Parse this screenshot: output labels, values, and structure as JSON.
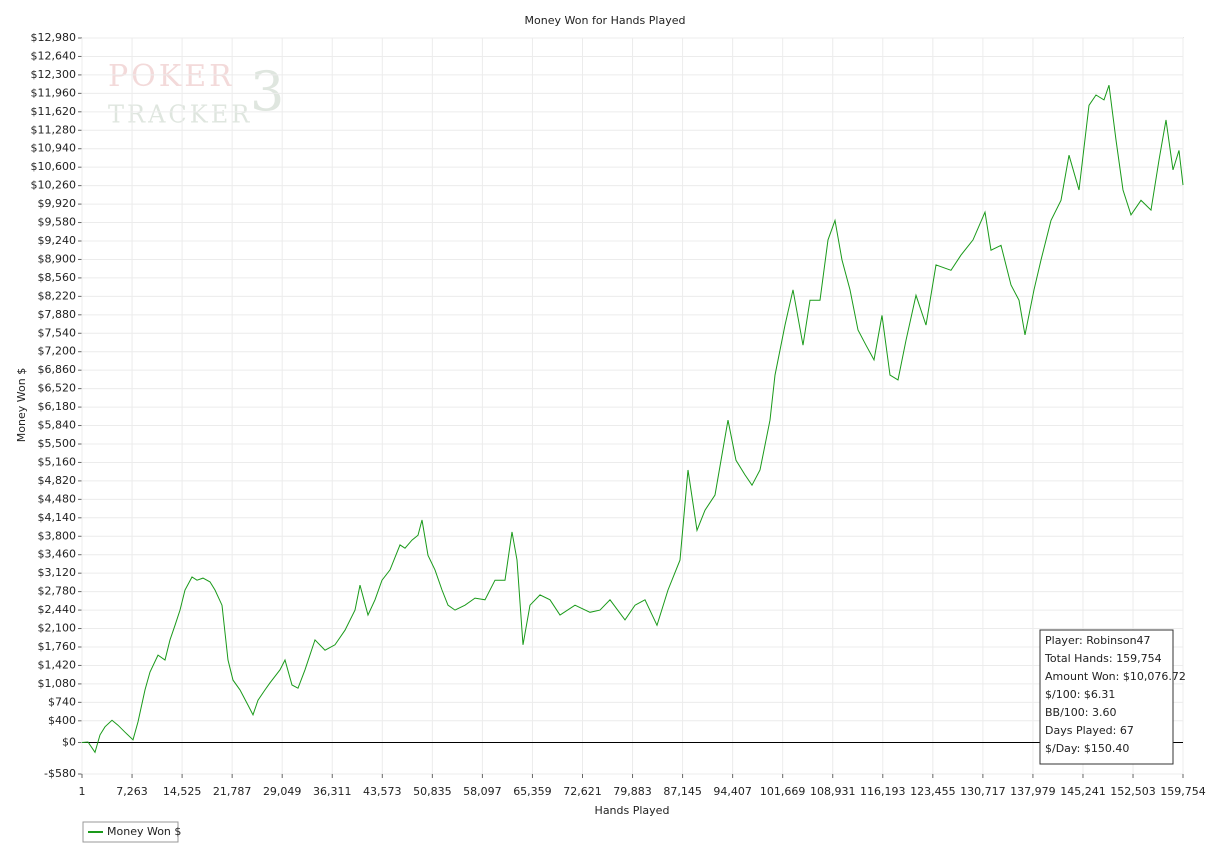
{
  "chart_data": {
    "type": "line",
    "title": "Money Won for Hands Played",
    "x_label": "Hands Played",
    "y_label": "Money Won $",
    "watermark": [
      "POKER",
      "TRACKER",
      "3"
    ],
    "info_box": [
      "Player: Robinson47",
      "Total Hands: 159,754",
      "Amount Won: $10,076.72",
      "$/100: $6.31",
      "BB/100: 3.60",
      "Days Played: 67",
      "$/Day: $150.40"
    ],
    "reference_line": 0,
    "grid": true,
    "legend": "bottom-left",
    "xlim": [
      1,
      159754
    ],
    "ylim": [
      -580,
      12980
    ],
    "xticks": [
      1,
      {
        "value": 7263,
        "label": "7,263"
      },
      {
        "value": 14525,
        "label": "14,525"
      },
      {
        "value": 21787,
        "label": "21,787"
      },
      {
        "value": 29049,
        "label": "29,049"
      },
      {
        "value": 36311,
        "label": "36,311"
      },
      {
        "value": 43573,
        "label": "43,573"
      },
      {
        "value": 50835,
        "label": "50,835"
      },
      {
        "value": 58097,
        "label": "58,097"
      },
      {
        "value": 65359,
        "label": "65,359"
      },
      {
        "value": 72621,
        "label": "72,621"
      },
      {
        "value": 79883,
        "label": "79,883"
      },
      {
        "value": 87145,
        "label": "87,145"
      },
      {
        "value": 94407,
        "label": "94,407"
      },
      {
        "value": 101669,
        "label": "101,669"
      },
      {
        "value": 108931,
        "label": "108,931"
      },
      {
        "value": 116193,
        "label": "116,193"
      },
      {
        "value": 123455,
        "label": "123,455"
      },
      {
        "value": 130717,
        "label": "130,717"
      },
      {
        "value": 137979,
        "label": "137,979"
      },
      {
        "value": 145241,
        "label": "145,241"
      },
      {
        "value": 152503,
        "label": "152,503"
      },
      {
        "value": 159754,
        "label": "159,754"
      }
    ],
    "yticks": [
      {
        "value": -580,
        "label": "-$580"
      },
      {
        "value": 0,
        "label": "$0"
      },
      {
        "value": 400,
        "label": "$400"
      },
      {
        "value": 740,
        "label": "$740"
      },
      {
        "value": 1080,
        "label": "$1,080"
      },
      {
        "value": 1420,
        "label": "$1,420"
      },
      {
        "value": 1760,
        "label": "$1,760"
      },
      {
        "value": 2100,
        "label": "$2,100"
      },
      {
        "value": 2440,
        "label": "$2,440"
      },
      {
        "value": 2780,
        "label": "$2,780"
      },
      {
        "value": 3120,
        "label": "$3,120"
      },
      {
        "value": 3460,
        "label": "$3,460"
      },
      {
        "value": 3800,
        "label": "$3,800"
      },
      {
        "value": 4140,
        "label": "$4,140"
      },
      {
        "value": 4480,
        "label": "$4,480"
      },
      {
        "value": 4820,
        "label": "$4,820"
      },
      {
        "value": 5160,
        "label": "$5,160"
      },
      {
        "value": 5500,
        "label": "$5,500"
      },
      {
        "value": 5840,
        "label": "$5,840"
      },
      {
        "value": 6180,
        "label": "$6,180"
      },
      {
        "value": 6520,
        "label": "$6,520"
      },
      {
        "value": 6860,
        "label": "$6,860"
      },
      {
        "value": 7200,
        "label": "$7,200"
      },
      {
        "value": 7540,
        "label": "$7,540"
      },
      {
        "value": 7880,
        "label": "$7,880"
      },
      {
        "value": 8220,
        "label": "$8,220"
      },
      {
        "value": 8560,
        "label": "$8,560"
      },
      {
        "value": 8900,
        "label": "$8,900"
      },
      {
        "value": 9240,
        "label": "$9,240"
      },
      {
        "value": 9580,
        "label": "$9,580"
      },
      {
        "value": 9920,
        "label": "$9,920"
      },
      {
        "value": 10260,
        "label": "$10,260"
      },
      {
        "value": 10600,
        "label": "$10,600"
      },
      {
        "value": 10940,
        "label": "$10,940"
      },
      {
        "value": 11280,
        "label": "$11,280"
      },
      {
        "value": 11620,
        "label": "$11,620"
      },
      {
        "value": 11960,
        "label": "$11,960"
      },
      {
        "value": 12300,
        "label": "$12,300"
      },
      {
        "value": 12640,
        "label": "$12,640"
      },
      {
        "value": 12980,
        "label": "$12,980"
      }
    ],
    "x": [
      1,
      872,
      1887,
      2612,
      3338,
      4354,
      5225,
      6240,
      7401,
      8127,
      9143,
      9868,
      11028,
      12044,
      12770,
      13495,
      14221,
      14946,
      15962,
      16688,
      17558,
      18574,
      19300,
      20315,
      21186,
      21911,
      22927,
      24088,
      24813,
      25539,
      26554,
      27280,
      28730,
      29456,
      30472,
      31342,
      32357,
      33808,
      35259,
      36710,
      38161,
      39612,
      40338,
      41499,
      42514,
      43530,
      44691,
      46142,
      46867,
      47883,
      48754,
      49334,
      50205,
      51220,
      52236,
      53107,
      54122,
      55573,
      57024,
      58475,
      59926,
      61377,
      62393,
      63119,
      63989,
      65005,
      66456,
      67907,
      69358,
      71534,
      73711,
      75162,
      76613,
      78789,
      80240,
      81691,
      83433,
      85029,
      86770,
      87931,
      89237,
      90398,
      91849,
      93735,
      94896,
      96202,
      97218,
      98378,
      99829,
      100555,
      102006,
      103167,
      104618,
      105634,
      107085,
      108245,
      109261,
      110277,
      111437,
      112598,
      113759,
      114920,
      116081,
      117242,
      118403,
      119563,
      121014,
      122465,
      123916,
      126093,
      127544,
      129285,
      131026,
      131897,
      133348,
      134799,
      135960,
      136830,
      138136,
      139152,
      140603,
      142054,
      143214,
      144665,
      146116,
      147132,
      148293,
      149019,
      150034,
      151050,
      152211,
      153662,
      155113,
      156274,
      157290,
      158306,
      159176,
      159754
    ],
    "series": [
      {
        "name": "Money Won $",
        "color": "#1a9a1a",
        "values": [
          0,
          10,
          -180,
          140,
          290,
          410,
          320,
          190,
          50,
          380,
          970,
          1300,
          1610,
          1520,
          1890,
          2160,
          2440,
          2810,
          3050,
          2990,
          3030,
          2960,
          2810,
          2530,
          1520,
          1150,
          970,
          690,
          510,
          780,
          970,
          1100,
          1340,
          1520,
          1060,
          1000,
          1340,
          1890,
          1700,
          1800,
          2070,
          2440,
          2900,
          2350,
          2630,
          2990,
          3180,
          3640,
          3580,
          3730,
          3820,
          4100,
          3450,
          3180,
          2810,
          2530,
          2440,
          2530,
          2660,
          2630,
          2990,
          2990,
          3880,
          3360,
          1800,
          2530,
          2720,
          2630,
          2350,
          2530,
          2400,
          2440,
          2630,
          2260,
          2530,
          2630,
          2160,
          2810,
          3360,
          5020,
          3910,
          4280,
          4560,
          5940,
          5200,
          4930,
          4740,
          5020,
          5940,
          6770,
          7690,
          8340,
          7320,
          8150,
          8150,
          9260,
          9620,
          8890,
          8340,
          7600,
          7320,
          7050,
          7870,
          6770,
          6680,
          7410,
          8240,
          7690,
          8800,
          8700,
          8980,
          9260,
          9770,
          9070,
          9160,
          8430,
          8150,
          7510,
          8340,
          8890,
          9620,
          9990,
          10820,
          10180,
          11740,
          11930,
          11840,
          12110,
          11100,
          10180,
          9720,
          9990,
          9810,
          10730,
          11470,
          10550,
          10910,
          10270
        ]
      }
    ]
  }
}
